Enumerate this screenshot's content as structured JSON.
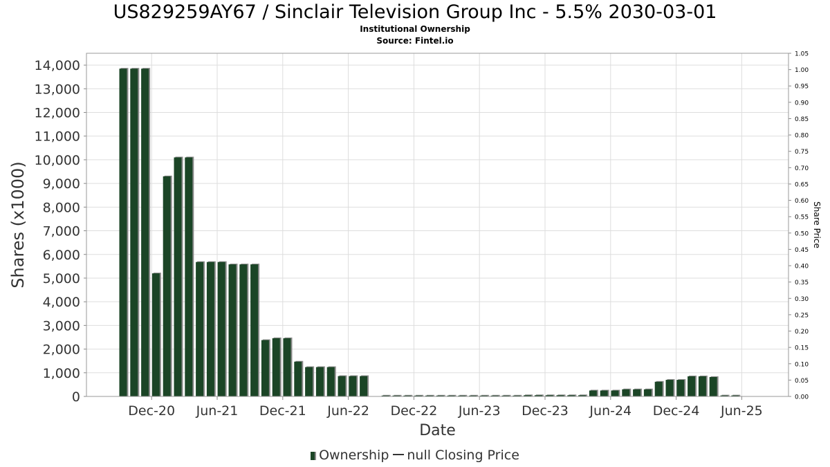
{
  "chart_data": {
    "type": "bar",
    "title": "US829259AY67 / Sinclair Television Group Inc - 5.5% 2030-03-01",
    "subtitle": "Institutional Ownership",
    "source": "Source: Fintel.io",
    "xlabel": "Date",
    "ylabel": "Shares (x1000)",
    "y2label": "Share Price",
    "ylim": [
      0,
      14500
    ],
    "y2lim": [
      0,
      1.05
    ],
    "y_ticks": [
      "0",
      "1,000",
      "2,000",
      "3,000",
      "4,000",
      "5,000",
      "6,000",
      "7,000",
      "8,000",
      "9,000",
      "10,000",
      "11,000",
      "12,000",
      "13,000",
      "14,000"
    ],
    "y2_ticks": [
      "0.00",
      "0.05",
      "0.10",
      "0.15",
      "0.20",
      "0.25",
      "0.30",
      "0.35",
      "0.40",
      "0.45",
      "0.50",
      "0.55",
      "0.60",
      "0.65",
      "0.70",
      "0.75",
      "0.80",
      "0.85",
      "0.90",
      "0.95",
      "1.00",
      "1.05"
    ],
    "x_ticks": [
      "Dec-20",
      "Jun-21",
      "Dec-21",
      "Jun-22",
      "Dec-22",
      "Jun-23",
      "Dec-23",
      "Jun-24",
      "Dec-24",
      "Jun-25"
    ],
    "grid": true,
    "legend_position": "bottom",
    "colors": {
      "bar": "#1b4526",
      "bar_shadow": "#8a8a8a",
      "grid": "#dddddd"
    },
    "series": [
      {
        "name": "Ownership",
        "values": [
          13850,
          13850,
          13850,
          5200,
          9300,
          10100,
          10100,
          5680,
          5680,
          5680,
          5580,
          5580,
          5580,
          2380,
          2460,
          2460,
          1470,
          1240,
          1240,
          1240,
          860,
          860,
          860,
          0,
          12,
          12,
          12,
          5,
          5,
          5,
          5,
          20,
          20,
          20,
          20,
          20,
          20,
          50,
          50,
          50,
          50,
          50,
          50,
          250,
          250,
          250,
          300,
          300,
          300,
          620,
          700,
          700,
          850,
          850,
          820,
          40,
          40
        ]
      },
      {
        "name": "null Closing Price",
        "values": []
      }
    ]
  },
  "legend": {
    "ownership": "Ownership",
    "price": "null Closing Price"
  }
}
